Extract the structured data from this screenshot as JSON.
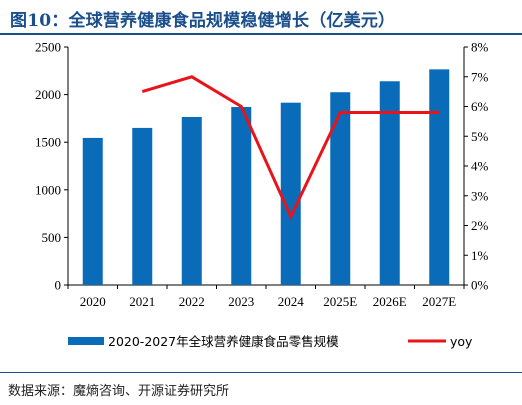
{
  "header": {
    "title": "图10：全球营养健康食品规模稳健增长（亿美元）"
  },
  "footer": {
    "source": "数据来源：魔熵咨询、开源证券研究所"
  },
  "chart_data": {
    "type": "bar",
    "categories": [
      "2020",
      "2021",
      "2022",
      "2023",
      "2024",
      "2025E",
      "2026E",
      "2027E"
    ],
    "series": [
      {
        "name": "2020-2027年全球营养健康食品零售规模",
        "type": "bar",
        "axis": "left",
        "color": "#0a6bb8",
        "values": [
          1545,
          1650,
          1765,
          1870,
          1915,
          2025,
          2140,
          2265
        ]
      },
      {
        "name": "yoy",
        "type": "line",
        "axis": "right",
        "color": "#e8141a",
        "values": [
          null,
          6.5,
          7.0,
          6.0,
          2.3,
          5.8,
          5.8,
          5.8
        ]
      }
    ],
    "y_left": {
      "min": 0,
      "max": 2500,
      "ticks": [
        "0",
        "500",
        "1000",
        "1500",
        "2000",
        "2500"
      ]
    },
    "y_right": {
      "min": 0,
      "max": 8,
      "ticks": [
        "0%",
        "1%",
        "2%",
        "3%",
        "4%",
        "5%",
        "6%",
        "7%",
        "8%"
      ]
    },
    "xlabel": "",
    "ylabel": "",
    "grid": false,
    "legend_position": "bottom"
  }
}
